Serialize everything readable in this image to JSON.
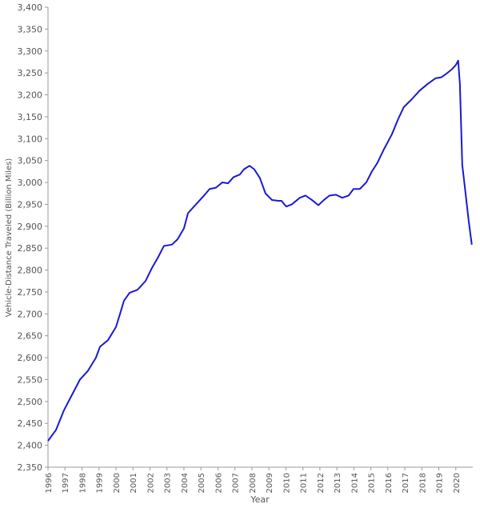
{
  "chart_data": {
    "type": "line",
    "x_label": "Year",
    "y_label": "Vehicle-Distance Traveled (Billion Miles)",
    "x": [
      1996.0,
      1996.47,
      1996.94,
      1997.41,
      1997.88,
      1998.35,
      1998.82,
      1999.06,
      1999.53,
      2000.0,
      2000.24,
      2000.47,
      2000.8,
      2001.27,
      2001.74,
      2002.12,
      2002.49,
      2002.82,
      2003.29,
      2003.62,
      2004.0,
      2004.24,
      2004.71,
      2005.18,
      2005.51,
      2005.88,
      2006.26,
      2006.59,
      2006.92,
      2007.29,
      2007.53,
      2007.86,
      2008.14,
      2008.47,
      2008.8,
      2009.18,
      2009.55,
      2009.74,
      2010.02,
      2010.35,
      2010.82,
      2011.15,
      2011.53,
      2011.91,
      2012.24,
      2012.56,
      2012.94,
      2013.32,
      2013.69,
      2013.98,
      2014.35,
      2014.73,
      2015.06,
      2015.39,
      2015.76,
      2016.24,
      2016.61,
      2016.94,
      2017.41,
      2017.88,
      2018.35,
      2018.82,
      2019.15,
      2019.44,
      2019.76,
      2020.0,
      2020.14,
      2020.24,
      2020.38,
      2020.56,
      2020.75,
      2020.94
    ],
    "series": [
      {
        "name": "Vehicle-Distance Traveled",
        "color": "#1a1ad6",
        "values": [
          2410,
          2435,
          2480,
          2515,
          2550,
          2570,
          2600,
          2625,
          2640,
          2670,
          2700,
          2730,
          2748,
          2755,
          2775,
          2805,
          2830,
          2855,
          2858,
          2870,
          2895,
          2930,
          2950,
          2970,
          2985,
          2988,
          3000,
          2998,
          3012,
          3018,
          3030,
          3038,
          3030,
          3010,
          2975,
          2960,
          2958,
          2958,
          2945,
          2950,
          2965,
          2970,
          2960,
          2948,
          2960,
          2970,
          2972,
          2965,
          2970,
          2985,
          2985,
          3000,
          3025,
          3045,
          3075,
          3110,
          3145,
          3172,
          3190,
          3210,
          3225,
          3238,
          3240,
          3248,
          3258,
          3268,
          3278,
          3225,
          3040,
          2980,
          2915,
          2858
        ]
      }
    ],
    "xlim": [
      1996,
      2021
    ],
    "xticks": [
      1996,
      1997,
      1998,
      1999,
      2000,
      2001,
      2002,
      2003,
      2004,
      2005,
      2006,
      2007,
      2008,
      2009,
      2010,
      2011,
      2012,
      2013,
      2014,
      2015,
      2016,
      2017,
      2018,
      2019,
      2020
    ],
    "ylim": [
      2350,
      3400
    ],
    "yticks": [
      {
        "value": 2350,
        "label": "2,350"
      },
      {
        "value": 2400,
        "label": "2,400"
      },
      {
        "value": 2450,
        "label": "2,450"
      },
      {
        "value": 2500,
        "label": "2,500"
      },
      {
        "value": 2550,
        "label": "2,550"
      },
      {
        "value": 2600,
        "label": "2,600"
      },
      {
        "value": 2650,
        "label": "2,650"
      },
      {
        "value": 2700,
        "label": "2,700"
      },
      {
        "value": 2750,
        "label": "2,750"
      },
      {
        "value": 2800,
        "label": "2,800"
      },
      {
        "value": 2850,
        "label": "2,850"
      },
      {
        "value": 2900,
        "label": "2,900"
      },
      {
        "value": 2950,
        "label": "2,950"
      },
      {
        "value": 3000,
        "label": "3,000"
      },
      {
        "value": 3050,
        "label": "3,050"
      },
      {
        "value": 3100,
        "label": "3,100"
      },
      {
        "value": 3150,
        "label": "3,150"
      },
      {
        "value": 3200,
        "label": "3,200"
      },
      {
        "value": 3250,
        "label": "3,250"
      },
      {
        "value": 3300,
        "label": "3,300"
      },
      {
        "value": 3350,
        "label": "3,350"
      },
      {
        "value": 3400,
        "label": "3,400"
      }
    ],
    "grid": false
  }
}
